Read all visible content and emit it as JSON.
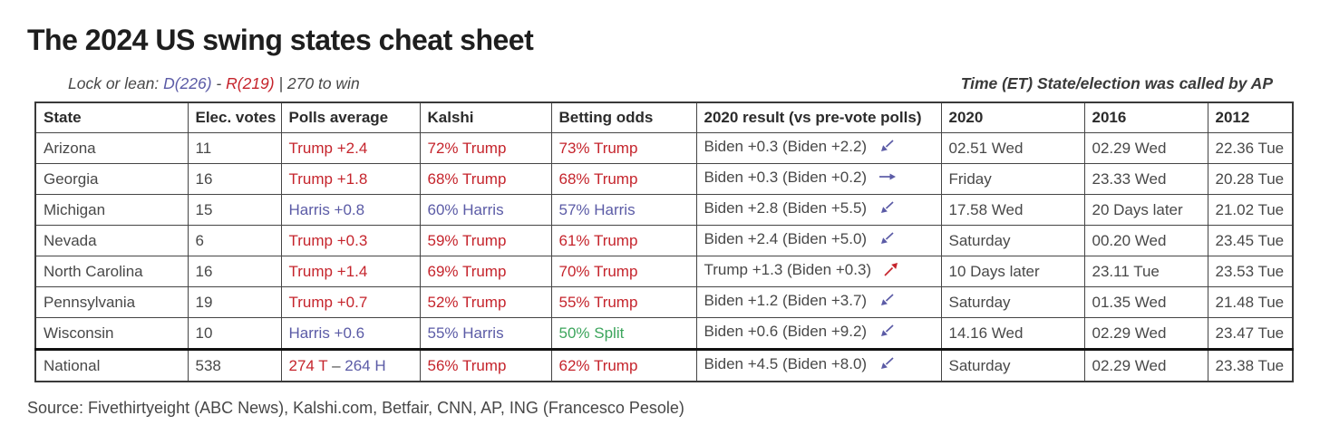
{
  "header": {
    "title": "The 2024 US swing states cheat sheet",
    "lock_or_lean": {
      "label": "Lock or lean: ",
      "dem": "D(226)",
      "separator": " - ",
      "rep": "R(219)",
      "to_win": " | 270 to win"
    },
    "time_note": "Time (ET) State/election was called by AP"
  },
  "source": "Source: Fivethirtyeight (ABC News), Kalshi.com, Betfair, CNN, AP, ING (Francesco Pesole)",
  "colors": {
    "red": "#c5242c",
    "blue": "#5b5ba6",
    "green": "#3ca55c",
    "gray": "#484848"
  },
  "chart_data": {
    "type": "table",
    "title": "The 2024 US swing states cheat sheet",
    "columns": [
      "State",
      "Elec. votes",
      "Polls average",
      "Kalshi",
      "Betting odds",
      "2020 result (vs pre-vote polls)",
      "2020",
      "2016",
      "2012"
    ],
    "rows": [
      {
        "state": "Arizona",
        "elec_votes": "11",
        "polls_average": [
          {
            "text": "Trump +2.4",
            "color": "red"
          }
        ],
        "kalshi": [
          {
            "text": "72% Trump",
            "color": "red"
          }
        ],
        "betting_odds": [
          {
            "text": "73% Trump",
            "color": "red"
          }
        ],
        "result_2020": {
          "text": "Biden +0.3 (Biden +2.2)",
          "arrow": "down-left",
          "arrow_color": "blue"
        },
        "called_2020": "02.51 Wed",
        "called_2016": "02.29 Wed",
        "called_2012": "22.36 Tue"
      },
      {
        "state": "Georgia",
        "elec_votes": "16",
        "polls_average": [
          {
            "text": "Trump +1.8",
            "color": "red"
          }
        ],
        "kalshi": [
          {
            "text": "68% Trump",
            "color": "red"
          }
        ],
        "betting_odds": [
          {
            "text": "68% Trump",
            "color": "red"
          }
        ],
        "result_2020": {
          "text": "Biden +0.3 (Biden +0.2)",
          "arrow": "right",
          "arrow_color": "blue"
        },
        "called_2020": "Friday",
        "called_2016": "23.33 Wed",
        "called_2012": "20.28 Tue"
      },
      {
        "state": "Michigan",
        "elec_votes": "15",
        "polls_average": [
          {
            "text": "Harris +0.8",
            "color": "blue"
          }
        ],
        "kalshi": [
          {
            "text": "60% Harris",
            "color": "blue"
          }
        ],
        "betting_odds": [
          {
            "text": "57% Harris",
            "color": "blue"
          }
        ],
        "result_2020": {
          "text": "Biden +2.8 (Biden +5.5)",
          "arrow": "down-left",
          "arrow_color": "blue"
        },
        "called_2020": "17.58 Wed",
        "called_2016": "20 Days later",
        "called_2012": "21.02 Tue"
      },
      {
        "state": "Nevada",
        "elec_votes": "6",
        "polls_average": [
          {
            "text": "Trump +0.3",
            "color": "red"
          }
        ],
        "kalshi": [
          {
            "text": "59% Trump",
            "color": "red"
          }
        ],
        "betting_odds": [
          {
            "text": "61% Trump",
            "color": "red"
          }
        ],
        "result_2020": {
          "text": "Biden +2.4 (Biden +5.0)",
          "arrow": "down-left",
          "arrow_color": "blue"
        },
        "called_2020": "Saturday",
        "called_2016": "00.20 Wed",
        "called_2012": "23.45 Tue"
      },
      {
        "state": "North Carolina",
        "elec_votes": "16",
        "polls_average": [
          {
            "text": "Trump +1.4",
            "color": "red"
          }
        ],
        "kalshi": [
          {
            "text": "69% Trump",
            "color": "red"
          }
        ],
        "betting_odds": [
          {
            "text": "70% Trump",
            "color": "red"
          }
        ],
        "result_2020": {
          "text": "Trump +1.3 (Biden +0.3)",
          "arrow": "up-right",
          "arrow_color": "red"
        },
        "called_2020": "10 Days later",
        "called_2016": "23.11 Tue",
        "called_2012": "23.53 Tue"
      },
      {
        "state": "Pennsylvania",
        "elec_votes": "19",
        "polls_average": [
          {
            "text": "Trump +0.7",
            "color": "red"
          }
        ],
        "kalshi": [
          {
            "text": "52% Trump",
            "color": "red"
          }
        ],
        "betting_odds": [
          {
            "text": "55% Trump",
            "color": "red"
          }
        ],
        "result_2020": {
          "text": "Biden +1.2 (Biden +3.7)",
          "arrow": "down-left",
          "arrow_color": "blue"
        },
        "called_2020": "Saturday",
        "called_2016": "01.35 Wed",
        "called_2012": "21.48 Tue"
      },
      {
        "state": "Wisconsin",
        "elec_votes": "10",
        "polls_average": [
          {
            "text": "Harris +0.6",
            "color": "blue"
          }
        ],
        "kalshi": [
          {
            "text": "55% Harris",
            "color": "blue"
          }
        ],
        "betting_odds": [
          {
            "text": "50% Split",
            "color": "green"
          }
        ],
        "result_2020": {
          "text": "Biden +0.6 (Biden +9.2)",
          "arrow": "down-left",
          "arrow_color": "blue"
        },
        "called_2020": "14.16 Wed",
        "called_2016": "02.29 Wed",
        "called_2012": "23.47 Tue"
      },
      {
        "state": "National",
        "elec_votes": "538",
        "polls_average": [
          {
            "text": "274 T",
            "color": "red"
          },
          {
            "text": " – ",
            "color": "gray"
          },
          {
            "text": "264 H",
            "color": "blue"
          }
        ],
        "kalshi": [
          {
            "text": "56% Trump",
            "color": "red"
          }
        ],
        "betting_odds": [
          {
            "text": "62% Trump",
            "color": "red"
          }
        ],
        "result_2020": {
          "text": "Biden +4.5 (Biden +8.0)",
          "arrow": "down-left",
          "arrow_color": "blue"
        },
        "called_2020": "Saturday",
        "called_2016": "02.29 Wed",
        "called_2012": "23.38 Tue"
      }
    ]
  }
}
